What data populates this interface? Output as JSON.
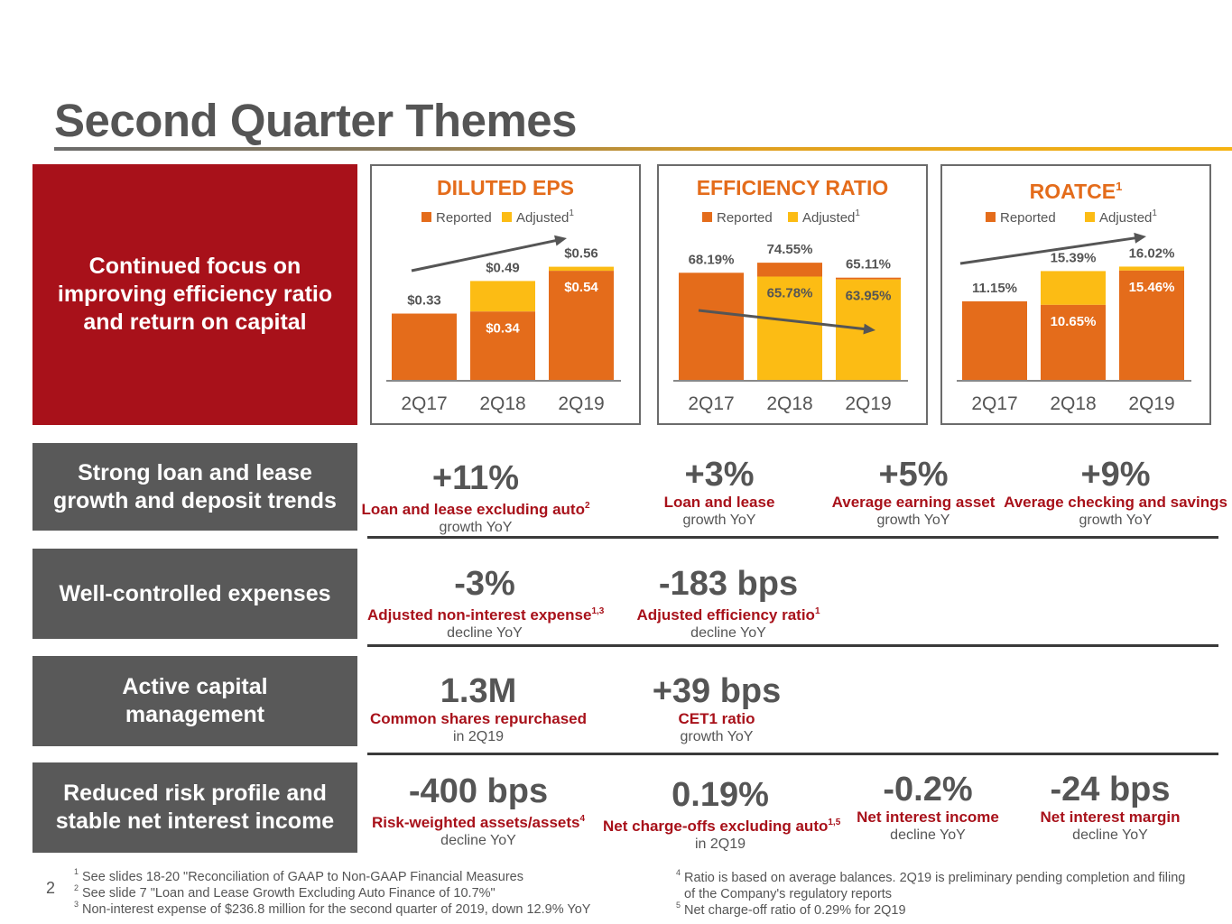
{
  "title": "Second Quarter Themes",
  "colors": {
    "brand_red": "#a8111a",
    "reported": "#e46c1b",
    "adjusted": "#fcbc14",
    "gray": "#595959",
    "title_accent": "#f6b312"
  },
  "themes": [
    "Continued focus on\nimproving efficiency ratio\nand return on capital",
    "Strong loan and lease\ngrowth and deposit trends",
    "Well-controlled expenses",
    "Active capital\nmanagement",
    "Reduced risk profile and\nstable net interest income"
  ],
  "chart_data": [
    {
      "type": "bar",
      "title": "DILUTED EPS",
      "title_sup": "",
      "legend": [
        "Reported",
        "Adjusted"
      ],
      "legend_sup": "1",
      "categories": [
        "2Q17",
        "2Q18",
        "2Q19"
      ],
      "series": [
        {
          "name": "Reported",
          "values": [
            0.33,
            0.34,
            0.54
          ]
        },
        {
          "name": "Adjusted",
          "values": [
            0.33,
            0.49,
            0.56
          ]
        }
      ],
      "reported_labels": [
        "$0.33",
        "$0.34",
        "$0.54"
      ],
      "adjusted_labels": [
        "",
        "$0.49",
        "$0.56"
      ],
      "ylim": [
        0,
        0.7
      ],
      "trend": "up"
    },
    {
      "type": "bar",
      "title": "EFFICIENCY RATIO",
      "title_sup": "",
      "legend": [
        "Reported",
        "Adjusted"
      ],
      "legend_sup": "1",
      "categories": [
        "2Q17",
        "2Q18",
        "2Q19"
      ],
      "series": [
        {
          "name": "Reported",
          "values": [
            68.19,
            74.55,
            65.11
          ]
        },
        {
          "name": "Adjusted",
          "values": [
            68.19,
            65.78,
            63.95
          ]
        }
      ],
      "reported_labels": [
        "68.19%",
        "74.55%",
        "65.11%"
      ],
      "adjusted_labels": [
        "",
        "65.78%",
        "63.95%"
      ],
      "ylim": [
        0,
        90
      ],
      "trend": "down"
    },
    {
      "type": "bar",
      "title": "ROATCE",
      "title_sup": "1",
      "legend": [
        "Reported",
        "Adjusted"
      ],
      "legend_sup": "1",
      "categories": [
        "2Q17",
        "2Q18",
        "2Q19"
      ],
      "series": [
        {
          "name": "Reported",
          "values": [
            11.15,
            10.65,
            15.46
          ]
        },
        {
          "name": "Adjusted",
          "values": [
            11.15,
            15.39,
            16.02
          ]
        }
      ],
      "reported_labels": [
        "11.15%",
        "10.65%",
        "15.46%"
      ],
      "adjusted_labels": [
        "",
        "15.39%",
        "16.02%"
      ],
      "ylim": [
        0,
        20
      ],
      "trend": "up"
    }
  ],
  "metrics": {
    "loan_auto": {
      "value": "+11%",
      "label": "Loan and lease excluding auto",
      "sup": "2",
      "sub": "growth YoY"
    },
    "loan": {
      "value": "+3%",
      "label": "Loan and lease",
      "sup": "",
      "sub": "growth YoY"
    },
    "earning_asset": {
      "value": "+5%",
      "label": "Average earning asset",
      "sup": "",
      "sub": "growth YoY"
    },
    "checking": {
      "value": "+9%",
      "label": "Average checking and savings",
      "sup": "",
      "sub": "growth YoY"
    },
    "nonint_expense": {
      "value": "-3%",
      "label": "Adjusted non-interest expense",
      "sup": "1,3",
      "sub": "decline YoY"
    },
    "efficiency": {
      "value": "-183 bps",
      "label": "Adjusted efficiency ratio",
      "sup": "1",
      "sub": "decline YoY"
    },
    "shares": {
      "value": "1.3M",
      "label": "Common shares repurchased",
      "sup": "",
      "sub": "in 2Q19"
    },
    "cet1": {
      "value": "+39 bps",
      "label": "CET1 ratio",
      "sup": "",
      "sub": "growth YoY"
    },
    "rwa": {
      "value": "-400 bps",
      "label": "Risk-weighted assets/assets",
      "sup": "4",
      "sub": "decline YoY"
    },
    "nco": {
      "value": "0.19%",
      "label": "Net charge-offs excluding auto",
      "sup": "1,5",
      "sub": "in 2Q19"
    },
    "nii": {
      "value": "-0.2%",
      "label": "Net interest income",
      "sup": "",
      "sub": "decline YoY"
    },
    "nim": {
      "value": "-24 bps",
      "label": "Net interest margin",
      "sup": "",
      "sub": "decline YoY"
    }
  },
  "page_number": "2",
  "footnotes_left": [
    {
      "num": "1",
      "text": "See slides 18-20 \"Reconciliation of GAAP to Non-GAAP Financial Measures"
    },
    {
      "num": "2",
      "text": "See slide 7 \"Loan and Lease Growth Excluding Auto Finance of 10.7%\""
    },
    {
      "num": "3",
      "text": "Non-interest expense of $236.8 million for the second quarter of 2019, down 12.9% YoY"
    }
  ],
  "footnotes_right": [
    {
      "num": "4",
      "text": "Ratio is based on average balances. 2Q19 is preliminary pending completion and filing"
    },
    {
      "num": "",
      "text": "of the Company's regulatory reports"
    },
    {
      "num": "5",
      "text": "Net charge-off ratio of 0.29% for 2Q19"
    }
  ]
}
